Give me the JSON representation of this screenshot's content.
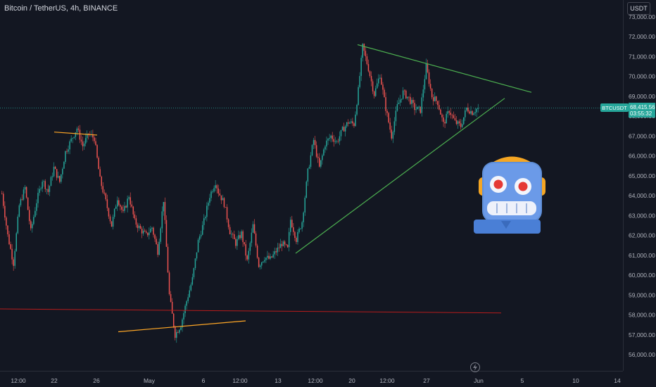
{
  "header": {
    "symbol_title": "Bitcoin / TetherUS, 4h, BINANCE",
    "currency_button": "USDT"
  },
  "price_tag": {
    "symbol": "BTCUSDT",
    "price": "68,415.56",
    "countdown": "03:55:32"
  },
  "colors": {
    "up": "#26a69a",
    "down": "#ef5350",
    "background": "#131722",
    "grid": "#1e222d",
    "axis_text": "#b2b5be",
    "trendline_green": "#4caf50",
    "trendline_orange": "#ffa726",
    "support_red": "#b71c1c"
  },
  "mascot": {
    "icon": "robot-icon"
  },
  "footer": {
    "lightning_icon": "lightning-icon"
  },
  "chart_data": {
    "type": "candlestick",
    "title": "Bitcoin / TetherUS, 4h, BINANCE",
    "y_axis_side": "right",
    "ylim": [
      55500,
      73500
    ],
    "yticks": [
      56000,
      57000,
      58000,
      59000,
      60000,
      61000,
      62000,
      63000,
      64000,
      65000,
      66000,
      67000,
      68000,
      69000,
      70000,
      71000,
      72000,
      73000
    ],
    "ytick_labels": [
      "56,000.00",
      "57,000.00",
      "58,000.00",
      "59,000.00",
      "60,000.00",
      "61,000.00",
      "62,000.00",
      "63,000.00",
      "64,000.00",
      "65,000.00",
      "66,000.00",
      "67,000.00",
      "68,000.00",
      "69,000.00",
      "70,000.00",
      "71,000.00",
      "72,000.00",
      "73,000.00"
    ],
    "xticks": [
      "12:00",
      "22",
      "26",
      "May",
      "6",
      "12:00",
      "13",
      "12:00",
      "20",
      "12:00",
      "27",
      "Jun",
      "5",
      "10",
      "14"
    ],
    "grid": false,
    "last_price": 68415.56,
    "price_path": [
      [
        0,
        64100
      ],
      [
        4,
        62000
      ],
      [
        8,
        60600
      ],
      [
        12,
        63500
      ],
      [
        16,
        64400
      ],
      [
        20,
        62200
      ],
      [
        24,
        63700
      ],
      [
        28,
        64800
      ],
      [
        32,
        64200
      ],
      [
        36,
        65400
      ],
      [
        40,
        64700
      ],
      [
        44,
        66200
      ],
      [
        48,
        66800
      ],
      [
        52,
        67400
      ],
      [
        56,
        66500
      ],
      [
        60,
        67100
      ],
      [
        64,
        66900
      ],
      [
        68,
        64800
      ],
      [
        72,
        63700
      ],
      [
        76,
        62500
      ],
      [
        80,
        63900
      ],
      [
        84,
        63100
      ],
      [
        88,
        64000
      ],
      [
        92,
        62700
      ],
      [
        96,
        62300
      ],
      [
        100,
        62000
      ],
      [
        104,
        62400
      ],
      [
        108,
        61200
      ],
      [
        112,
        63800
      ],
      [
        116,
        59000
      ],
      [
        120,
        57000
      ],
      [
        124,
        57500
      ],
      [
        128,
        58700
      ],
      [
        132,
        59800
      ],
      [
        136,
        61700
      ],
      [
        140,
        62700
      ],
      [
        144,
        64000
      ],
      [
        148,
        64700
      ],
      [
        150,
        64200
      ],
      [
        154,
        63600
      ],
      [
        158,
        62200
      ],
      [
        162,
        61600
      ],
      [
        166,
        62100
      ],
      [
        170,
        60700
      ],
      [
        174,
        62500
      ],
      [
        178,
        60500
      ],
      [
        182,
        60900
      ],
      [
        186,
        60800
      ],
      [
        190,
        61200
      ],
      [
        194,
        61600
      ],
      [
        198,
        61300
      ],
      [
        200,
        62800
      ],
      [
        204,
        61800
      ],
      [
        208,
        62700
      ],
      [
        212,
        65200
      ],
      [
        216,
        66800
      ],
      [
        220,
        65400
      ],
      [
        224,
        66600
      ],
      [
        228,
        67000
      ],
      [
        232,
        66700
      ],
      [
        236,
        67300
      ],
      [
        240,
        67700
      ],
      [
        244,
        67600
      ],
      [
        247,
        69300
      ],
      [
        250,
        71500
      ],
      [
        254,
        70400
      ],
      [
        258,
        69100
      ],
      [
        262,
        70100
      ],
      [
        266,
        68400
      ],
      [
        270,
        67000
      ],
      [
        274,
        68500
      ],
      [
        278,
        69200
      ],
      [
        282,
        68900
      ],
      [
        286,
        68400
      ],
      [
        290,
        68300
      ],
      [
        294,
        70500
      ],
      [
        298,
        69000
      ],
      [
        302,
        68700
      ],
      [
        306,
        67600
      ],
      [
        310,
        68300
      ],
      [
        314,
        67700
      ],
      [
        318,
        67500
      ],
      [
        322,
        68400
      ],
      [
        326,
        68200
      ],
      [
        330,
        68415
      ]
    ],
    "annotations": [
      {
        "type": "trendline",
        "color": "green",
        "from": [
          508,
          71600
        ],
        "to": [
          755,
          69200
        ]
      },
      {
        "type": "trendline",
        "color": "green",
        "from": [
          420,
          61100
        ],
        "to": [
          717,
          68900
        ]
      },
      {
        "type": "trendline",
        "color": "orange",
        "from": [
          77,
          67200
        ],
        "to": [
          138,
          67050
        ]
      },
      {
        "type": "trendline",
        "color": "orange",
        "from": [
          168,
          57150
        ],
        "to": [
          349,
          57700
        ]
      },
      {
        "type": "horizontal",
        "color": "red",
        "from": [
          0,
          58300
        ],
        "to": [
          712,
          58100
        ]
      }
    ]
  }
}
